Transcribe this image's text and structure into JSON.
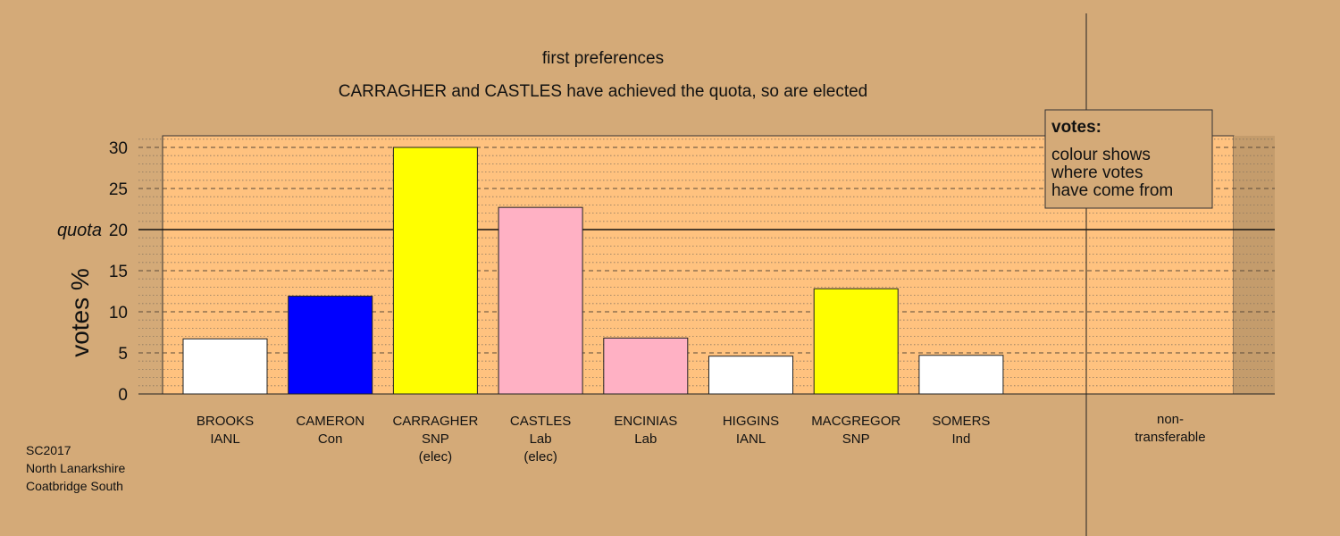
{
  "chart_data": {
    "type": "bar",
    "title": "first preferences",
    "subtitle": "CARRAGHER and CASTLES have achieved the quota, so are elected",
    "ylabel": "votes %",
    "ylim": [
      0,
      31.5
    ],
    "yticks": [
      0,
      5,
      10,
      15,
      20,
      25,
      30
    ],
    "quota": 20,
    "quota_label": "quota",
    "grid": true,
    "categories": [
      {
        "name": "BROOKS",
        "party": "IANL",
        "status": "",
        "value": 6.7,
        "color": "#ffffff"
      },
      {
        "name": "CAMERON",
        "party": "Con",
        "status": "",
        "value": 11.9,
        "color": "#0000ff"
      },
      {
        "name": "CARRAGHER",
        "party": "SNP",
        "status": "(elec)",
        "value": 30.0,
        "color": "#ffff00"
      },
      {
        "name": "CASTLES",
        "party": "Lab",
        "status": "(elec)",
        "value": 22.7,
        "color": "#ffb1c4"
      },
      {
        "name": "ENCINIAS",
        "party": "Lab",
        "status": "",
        "value": 6.8,
        "color": "#ffb1c4"
      },
      {
        "name": "HIGGINS",
        "party": "IANL",
        "status": "",
        "value": 4.6,
        "color": "#ffffff"
      },
      {
        "name": "MACGREGOR",
        "party": "SNP",
        "status": "",
        "value": 12.8,
        "color": "#ffff00"
      },
      {
        "name": "SOMERS",
        "party": "Ind",
        "status": "",
        "value": 4.7,
        "color": "#ffffff"
      }
    ],
    "nontransferable": {
      "label_line1": "non-",
      "label_line2": "transferable",
      "value": 0
    },
    "legend": {
      "placement": "top-right",
      "title": "votes:",
      "lines": [
        "colour shows",
        "where votes",
        "have come from"
      ]
    }
  },
  "source": {
    "line1": "SC2017",
    "line2": "North Lanarkshire",
    "line3": "Coatbridge South"
  }
}
